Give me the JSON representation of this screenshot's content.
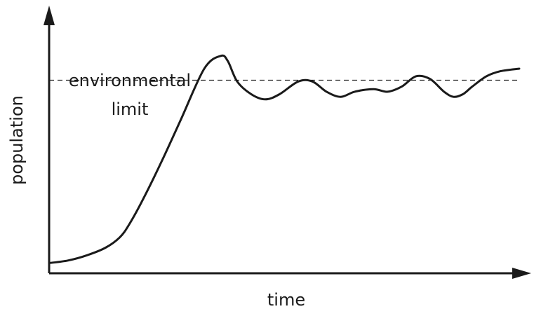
{
  "chart_data": {
    "type": "line",
    "title": "",
    "xlabel": "time",
    "ylabel": "population",
    "xlim": [
      0,
      100
    ],
    "ylim": [
      0,
      100
    ],
    "grid": false,
    "legend": "none",
    "tick_labels": false,
    "series": [
      {
        "color": "#1a1a1a",
        "x": [
          0,
          4,
          8,
          12,
          15,
          17,
          20,
          24,
          28,
          33,
          36.5,
          38,
          40,
          43,
          46,
          49,
          53,
          56,
          59,
          62,
          65,
          69,
          72,
          75,
          78,
          81,
          84,
          86,
          88,
          90,
          93,
          96,
          100
        ],
        "y": [
          4,
          5,
          7,
          10,
          14,
          19,
          29,
          44,
          60,
          80,
          85,
          83,
          75,
          70,
          68,
          70,
          75,
          75,
          71,
          69,
          71,
          72,
          71,
          73,
          77,
          76,
          71,
          69,
          70,
          73,
          77,
          79,
          80
        ]
      }
    ],
    "reference_lines": [
      {
        "axis": "y",
        "value": 75.5,
        "style": "dashed",
        "label": [
          "environmental",
          "limit"
        ]
      }
    ]
  }
}
